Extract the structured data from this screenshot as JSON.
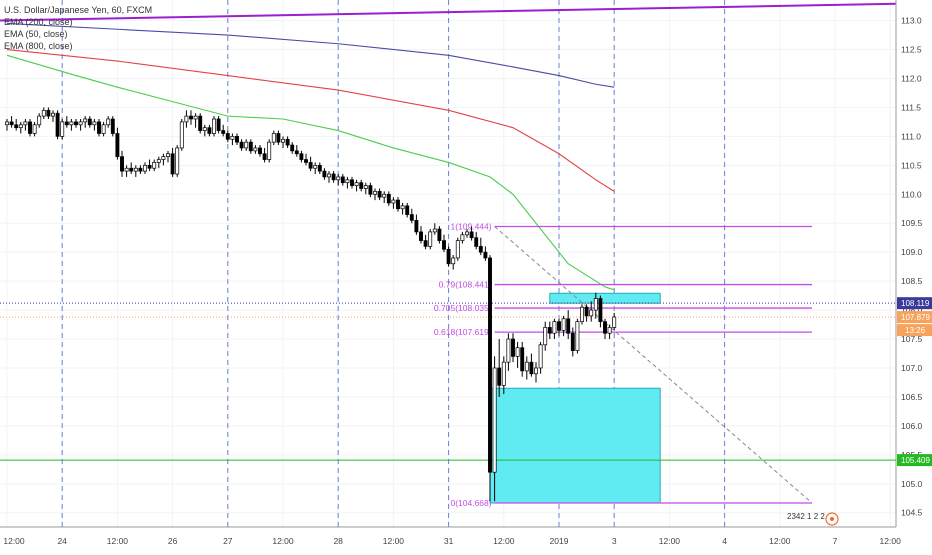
{
  "legend": {
    "symbol_line": "U.S. Dollar/Japanese Yen, 60, FXCM",
    "ema200": "EMA (200, close)",
    "ema50": "EMA (50, close)",
    "ema800": "EMA (800, close)"
  },
  "colors": {
    "ema200": "#4a4aa8",
    "ema50": "#4ccd4c",
    "ema800": "#e04444",
    "trendline": "#9a1fcf",
    "fib": "#c24ce6",
    "box": "#60eaf2",
    "box_border": "#2aaab8",
    "support": "#22bb22",
    "price_line": "#f7a35c",
    "level_line": "#3a3a9a",
    "bull": "#ffffff",
    "bear": "#000000"
  },
  "chart_data": {
    "type": "candlestick",
    "symbol": "U.S. Dollar/Japanese Yen, 60, FXCM",
    "x_ticks": [
      {
        "i": 0,
        "label": "12:00"
      },
      {
        "i": 12,
        "label": "24"
      },
      {
        "i": 24,
        "label": "12:00"
      },
      {
        "i": 36,
        "label": "26"
      },
      {
        "i": 48,
        "label": "27"
      },
      {
        "i": 60,
        "label": "12:00"
      },
      {
        "i": 72,
        "label": "28"
      },
      {
        "i": 84,
        "label": "12:00"
      },
      {
        "i": 96,
        "label": "31"
      },
      {
        "i": 108,
        "label": "12:00"
      },
      {
        "i": 120,
        "label": "2019"
      },
      {
        "i": 132,
        "label": "3"
      },
      {
        "i": 144,
        "label": "12:00"
      },
      {
        "i": 156,
        "label": "4"
      },
      {
        "i": 168,
        "label": "12:00"
      },
      {
        "i": 180,
        "label": "7"
      },
      {
        "i": 192,
        "label": "12:00"
      }
    ],
    "day_separators": [
      12,
      48,
      72,
      96,
      120,
      132,
      156
    ],
    "y_ticks": [
      104.5,
      105.0,
      105.5,
      106.0,
      106.5,
      107.0,
      107.5,
      108.0,
      108.5,
      109.0,
      109.5,
      110.0,
      110.5,
      111.0,
      111.5,
      112.0,
      112.5,
      113.0
    ],
    "ylim": [
      104.3,
      113.6
    ],
    "candles": [
      [
        0,
        111.2,
        111.3,
        111.1,
        111.25
      ],
      [
        1,
        111.25,
        111.35,
        111.15,
        111.2
      ],
      [
        2,
        111.2,
        111.3,
        111.1,
        111.15
      ],
      [
        3,
        111.15,
        111.25,
        111.05,
        111.2
      ],
      [
        4,
        111.2,
        111.3,
        111.1,
        111.25
      ],
      [
        5,
        111.25,
        111.3,
        111.0,
        111.05
      ],
      [
        6,
        111.05,
        111.25,
        111.0,
        111.2
      ],
      [
        7,
        111.2,
        111.4,
        111.15,
        111.35
      ],
      [
        8,
        111.35,
        111.5,
        111.3,
        111.45
      ],
      [
        9,
        111.45,
        111.5,
        111.3,
        111.35
      ],
      [
        10,
        111.35,
        111.45,
        111.25,
        111.4
      ],
      [
        11,
        111.4,
        111.45,
        110.95,
        111.0
      ],
      [
        12,
        111.0,
        111.3,
        110.95,
        111.25
      ],
      [
        13,
        111.25,
        111.35,
        111.15,
        111.2
      ],
      [
        14,
        111.2,
        111.3,
        111.1,
        111.25
      ],
      [
        15,
        111.25,
        111.3,
        111.15,
        111.2
      ],
      [
        16,
        111.2,
        111.3,
        111.1,
        111.25
      ],
      [
        17,
        111.25,
        111.35,
        111.15,
        111.3
      ],
      [
        18,
        111.3,
        111.35,
        111.15,
        111.2
      ],
      [
        19,
        111.2,
        111.3,
        111.1,
        111.25
      ],
      [
        20,
        111.25,
        111.3,
        111.0,
        111.05
      ],
      [
        21,
        111.05,
        111.25,
        111.0,
        111.2
      ],
      [
        22,
        111.2,
        111.35,
        111.15,
        111.3
      ],
      [
        23,
        111.3,
        111.35,
        111.0,
        111.05
      ],
      [
        24,
        111.05,
        111.15,
        110.6,
        110.65
      ],
      [
        25,
        110.65,
        110.75,
        110.3,
        110.4
      ],
      [
        26,
        110.4,
        110.5,
        110.3,
        110.45
      ],
      [
        27,
        110.45,
        110.55,
        110.35,
        110.4
      ],
      [
        28,
        110.4,
        110.5,
        110.3,
        110.45
      ],
      [
        29,
        110.45,
        110.5,
        110.35,
        110.4
      ],
      [
        30,
        110.4,
        110.55,
        110.35,
        110.5
      ],
      [
        31,
        110.5,
        110.6,
        110.4,
        110.45
      ],
      [
        32,
        110.45,
        110.6,
        110.4,
        110.55
      ],
      [
        33,
        110.55,
        110.65,
        110.45,
        110.6
      ],
      [
        34,
        110.6,
        110.7,
        110.5,
        110.65
      ],
      [
        35,
        110.65,
        110.75,
        110.55,
        110.7
      ],
      [
        36,
        110.7,
        110.8,
        110.3,
        110.35
      ],
      [
        37,
        110.35,
        110.85,
        110.3,
        110.8
      ],
      [
        38,
        110.8,
        111.3,
        110.75,
        111.25
      ],
      [
        39,
        111.25,
        111.45,
        111.15,
        111.35
      ],
      [
        40,
        111.35,
        111.45,
        111.2,
        111.3
      ],
      [
        41,
        111.3,
        111.4,
        111.15,
        111.35
      ],
      [
        42,
        111.35,
        111.4,
        111.05,
        111.1
      ],
      [
        43,
        111.1,
        111.2,
        111.0,
        111.15
      ],
      [
        44,
        111.15,
        111.2,
        111.0,
        111.05
      ],
      [
        45,
        111.05,
        111.35,
        111.0,
        111.3
      ],
      [
        46,
        111.3,
        111.35,
        111.05,
        111.1
      ],
      [
        47,
        111.1,
        111.2,
        111.0,
        111.05
      ],
      [
        48,
        111.05,
        111.1,
        110.9,
        110.95
      ],
      [
        49,
        110.95,
        111.05,
        110.85,
        111.0
      ],
      [
        50,
        111.0,
        111.05,
        110.85,
        110.9
      ],
      [
        51,
        110.9,
        110.95,
        110.75,
        110.8
      ],
      [
        52,
        110.8,
        110.95,
        110.75,
        110.9
      ],
      [
        53,
        110.9,
        110.95,
        110.7,
        110.75
      ],
      [
        54,
        110.75,
        110.85,
        110.7,
        110.8
      ],
      [
        55,
        110.8,
        110.85,
        110.65,
        110.7
      ],
      [
        56,
        110.7,
        110.8,
        110.55,
        110.6
      ],
      [
        57,
        110.6,
        110.95,
        110.55,
        110.9
      ],
      [
        58,
        110.9,
        111.1,
        110.85,
        111.05
      ],
      [
        59,
        111.05,
        111.1,
        110.85,
        110.9
      ],
      [
        60,
        110.9,
        111.0,
        110.8,
        110.95
      ],
      [
        61,
        110.95,
        111.0,
        110.8,
        110.85
      ],
      [
        62,
        110.85,
        110.9,
        110.7,
        110.75
      ],
      [
        63,
        110.75,
        110.85,
        110.65,
        110.7
      ],
      [
        64,
        110.7,
        110.75,
        110.55,
        110.6
      ],
      [
        65,
        110.6,
        110.7,
        110.5,
        110.55
      ],
      [
        66,
        110.55,
        110.65,
        110.4,
        110.45
      ],
      [
        67,
        110.45,
        110.55,
        110.35,
        110.5
      ],
      [
        68,
        110.5,
        110.55,
        110.35,
        110.4
      ],
      [
        69,
        110.4,
        110.45,
        110.25,
        110.3
      ],
      [
        70,
        110.3,
        110.4,
        110.2,
        110.35
      ],
      [
        71,
        110.35,
        110.4,
        110.2,
        110.25
      ],
      [
        72,
        110.25,
        110.35,
        110.15,
        110.3
      ],
      [
        73,
        110.3,
        110.35,
        110.15,
        110.2
      ],
      [
        74,
        110.2,
        110.3,
        110.1,
        110.25
      ],
      [
        75,
        110.25,
        110.3,
        110.1,
        110.15
      ],
      [
        76,
        110.15,
        110.25,
        110.05,
        110.2
      ],
      [
        77,
        110.2,
        110.25,
        110.05,
        110.1
      ],
      [
        78,
        110.1,
        110.2,
        110.0,
        110.15
      ],
      [
        79,
        110.15,
        110.2,
        109.95,
        110.0
      ],
      [
        80,
        110.0,
        110.1,
        109.9,
        110.05
      ],
      [
        81,
        110.05,
        110.1,
        109.9,
        109.95
      ],
      [
        82,
        109.95,
        110.05,
        109.85,
        110.0
      ],
      [
        83,
        110.0,
        110.05,
        109.8,
        109.85
      ],
      [
        84,
        109.85,
        109.95,
        109.75,
        109.9
      ],
      [
        85,
        109.9,
        109.95,
        109.7,
        109.75
      ],
      [
        86,
        109.75,
        109.85,
        109.65,
        109.8
      ],
      [
        87,
        109.8,
        109.85,
        109.6,
        109.65
      ],
      [
        88,
        109.65,
        109.75,
        109.5,
        109.55
      ],
      [
        89,
        109.55,
        109.65,
        109.3,
        109.35
      ],
      [
        90,
        109.35,
        109.45,
        109.15,
        109.2
      ],
      [
        91,
        109.2,
        109.3,
        109.05,
        109.1
      ],
      [
        92,
        109.1,
        109.4,
        109.05,
        109.35
      ],
      [
        93,
        109.35,
        109.5,
        109.3,
        109.4
      ],
      [
        94,
        109.4,
        109.45,
        109.15,
        109.2
      ],
      [
        95,
        109.2,
        109.3,
        109.0,
        109.05
      ],
      [
        96,
        109.05,
        109.1,
        108.75,
        108.8
      ],
      [
        97,
        108.8,
        108.95,
        108.7,
        108.9
      ],
      [
        98,
        108.9,
        109.25,
        108.85,
        109.2
      ],
      [
        99,
        109.2,
        109.35,
        109.15,
        109.3
      ],
      [
        100,
        109.3,
        109.4,
        109.25,
        109.35
      ],
      [
        101,
        109.35,
        109.44,
        109.2,
        109.25
      ],
      [
        102,
        109.25,
        109.35,
        109.05,
        109.1
      ],
      [
        103,
        109.1,
        109.25,
        108.95,
        109.0
      ],
      [
        104,
        109.0,
        109.1,
        108.85,
        108.9
      ],
      [
        105,
        108.9,
        108.95,
        104.7,
        105.2
      ],
      [
        106,
        105.2,
        107.2,
        104.7,
        107.0
      ],
      [
        107,
        107.0,
        107.5,
        106.5,
        106.7
      ],
      [
        108,
        106.7,
        107.2,
        106.55,
        107.1
      ],
      [
        109,
        107.1,
        107.6,
        106.95,
        107.5
      ],
      [
        110,
        107.5,
        107.6,
        107.1,
        107.2
      ],
      [
        111,
        107.2,
        107.45,
        107.0,
        107.35
      ],
      [
        112,
        107.35,
        107.45,
        106.85,
        106.95
      ],
      [
        113,
        106.95,
        107.2,
        106.8,
        107.1
      ],
      [
        114,
        107.1,
        107.25,
        106.85,
        106.9
      ],
      [
        115,
        106.9,
        107.1,
        106.75,
        107.0
      ],
      [
        116,
        107.0,
        107.45,
        106.9,
        107.4
      ],
      [
        117,
        107.4,
        107.8,
        107.3,
        107.7
      ],
      [
        118,
        107.7,
        107.8,
        107.5,
        107.6
      ],
      [
        119,
        107.6,
        107.85,
        107.5,
        107.8
      ],
      [
        120,
        107.8,
        107.85,
        107.55,
        107.65
      ],
      [
        121,
        107.65,
        107.9,
        107.55,
        107.85
      ],
      [
        122,
        107.85,
        108.0,
        107.5,
        107.6
      ],
      [
        123,
        107.6,
        107.7,
        107.2,
        107.3
      ],
      [
        124,
        107.3,
        107.85,
        107.25,
        107.8
      ],
      [
        125,
        107.8,
        108.1,
        107.75,
        108.05
      ],
      [
        126,
        108.05,
        108.1,
        107.8,
        107.9
      ],
      [
        127,
        107.9,
        108.15,
        107.8,
        108.0
      ],
      [
        128,
        108.0,
        108.3,
        107.85,
        108.2
      ],
      [
        129,
        108.2,
        108.25,
        107.7,
        107.8
      ],
      [
        130,
        107.8,
        107.85,
        107.5,
        107.6
      ],
      [
        131,
        107.6,
        107.75,
        107.5,
        107.7
      ],
      [
        132,
        107.7,
        107.95,
        107.65,
        107.88
      ]
    ],
    "ema50": [
      [
        0,
        112.4
      ],
      [
        15,
        112.05
      ],
      [
        24,
        111.85
      ],
      [
        36,
        111.6
      ],
      [
        48,
        111.35
      ],
      [
        60,
        111.3
      ],
      [
        72,
        111.1
      ],
      [
        84,
        110.8
      ],
      [
        96,
        110.55
      ],
      [
        105,
        110.3
      ],
      [
        110,
        110.0
      ],
      [
        115,
        109.5
      ],
      [
        122,
        108.8
      ],
      [
        130,
        108.4
      ],
      [
        132,
        108.35
      ]
    ],
    "ema200": [
      [
        0,
        112.95
      ],
      [
        24,
        112.85
      ],
      [
        48,
        112.75
      ],
      [
        72,
        112.6
      ],
      [
        96,
        112.4
      ],
      [
        110,
        112.2
      ],
      [
        120,
        112.05
      ],
      [
        128,
        111.9
      ],
      [
        132,
        111.85
      ]
    ],
    "ema800": [
      [
        0,
        112.5
      ],
      [
        24,
        112.3
      ],
      [
        48,
        112.05
      ],
      [
        72,
        111.8
      ],
      [
        96,
        111.45
      ],
      [
        110,
        111.15
      ],
      [
        120,
        110.7
      ],
      [
        128,
        110.25
      ],
      [
        132,
        110.05
      ]
    ],
    "trendline": {
      "from": [
        -2,
        113.0
      ],
      "to": [
        200,
        113.3
      ]
    },
    "fib": {
      "x_start": 106,
      "x_end": 175,
      "levels": [
        {
          "value": 109.444,
          "label": "1(109.444)"
        },
        {
          "value": 108.441,
          "label": "0.79(108.441)"
        },
        {
          "value": 108.035,
          "label": "0.705(108.035)"
        },
        {
          "value": 107.619,
          "label": "0.618(107.619)"
        },
        {
          "value": 104.668,
          "label": "0(104.668)"
        }
      ],
      "diagonal": {
        "from": [
          106,
          109.444
        ],
        "to": [
          175,
          104.668
        ]
      }
    },
    "boxes": [
      {
        "x0": 118,
        "x1": 142,
        "y0": 108.119,
        "y1": 108.29
      },
      {
        "x0": 105,
        "x1": 142,
        "y0": 104.668,
        "y1": 106.65
      }
    ],
    "support": {
      "value": 105.409,
      "label": "105.409"
    },
    "level_line": {
      "value": 108.119,
      "label": "108.119"
    },
    "last_price": {
      "value": 107.879,
      "label": "107.879",
      "countdown": "13:26"
    },
    "watermark": "2342 1 2 2"
  }
}
